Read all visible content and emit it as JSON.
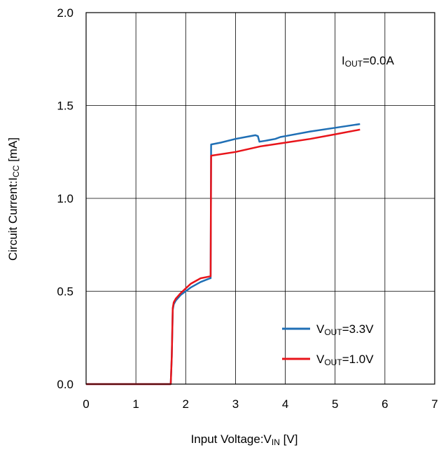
{
  "chart_data": {
    "type": "line",
    "xlabel": {
      "main": "Input Voltage:V",
      "sub": "IN",
      "unit": " [V]"
    },
    "ylabel": {
      "main": "Circuit Current:I",
      "sub": "CC",
      "unit": " [mA]"
    },
    "xlim": [
      0,
      7
    ],
    "ylim": [
      0,
      2
    ],
    "x_ticks": [
      "0",
      "1",
      "2",
      "3",
      "4",
      "5",
      "6",
      "7"
    ],
    "y_ticks": [
      "0.0",
      "0.5",
      "1.0",
      "1.5",
      "2.0"
    ],
    "x_tick_values": [
      0,
      1,
      2,
      3,
      4,
      5,
      6,
      7
    ],
    "y_tick_values": [
      0,
      0.5,
      1.0,
      1.5,
      2.0
    ],
    "grid": true,
    "annotation": {
      "main": "I",
      "sub": "OUT",
      "rest": "=0.0A"
    },
    "legend_position": "bottom-right",
    "series": [
      {
        "name": "V_OUT=3.3V",
        "legend": {
          "main": "V",
          "sub": "OUT",
          "rest": "=3.3V"
        },
        "color": "#1f6fb5",
        "points": [
          [
            0,
            0
          ],
          [
            1.7,
            0
          ],
          [
            1.72,
            0.15
          ],
          [
            1.74,
            0.4
          ],
          [
            1.76,
            0.43
          ],
          [
            1.8,
            0.45
          ],
          [
            1.9,
            0.48
          ],
          [
            2.1,
            0.52
          ],
          [
            2.3,
            0.55
          ],
          [
            2.49,
            0.57
          ],
          [
            2.5,
            0.57
          ],
          [
            2.51,
            1.29
          ],
          [
            2.7,
            1.3
          ],
          [
            3.0,
            1.32
          ],
          [
            3.2,
            1.33
          ],
          [
            3.4,
            1.34
          ],
          [
            3.45,
            1.335
          ],
          [
            3.48,
            1.305
          ],
          [
            3.6,
            1.31
          ],
          [
            3.8,
            1.32
          ],
          [
            3.9,
            1.33
          ],
          [
            4.0,
            1.335
          ],
          [
            4.5,
            1.36
          ],
          [
            5.0,
            1.38
          ],
          [
            5.5,
            1.4
          ]
        ]
      },
      {
        "name": "V_OUT=1.0V",
        "legend": {
          "main": "V",
          "sub": "OUT",
          "rest": "=1.0V"
        },
        "color": "#e8141a",
        "points": [
          [
            0,
            0
          ],
          [
            1.7,
            0
          ],
          [
            1.72,
            0.15
          ],
          [
            1.74,
            0.41
          ],
          [
            1.76,
            0.44
          ],
          [
            1.8,
            0.46
          ],
          [
            1.9,
            0.49
          ],
          [
            2.1,
            0.54
          ],
          [
            2.3,
            0.57
          ],
          [
            2.49,
            0.58
          ],
          [
            2.5,
            0.58
          ],
          [
            2.51,
            1.23
          ],
          [
            3.0,
            1.25
          ],
          [
            3.5,
            1.28
          ],
          [
            4.0,
            1.3
          ],
          [
            4.5,
            1.32
          ],
          [
            5.0,
            1.345
          ],
          [
            5.5,
            1.37
          ]
        ]
      }
    ]
  }
}
